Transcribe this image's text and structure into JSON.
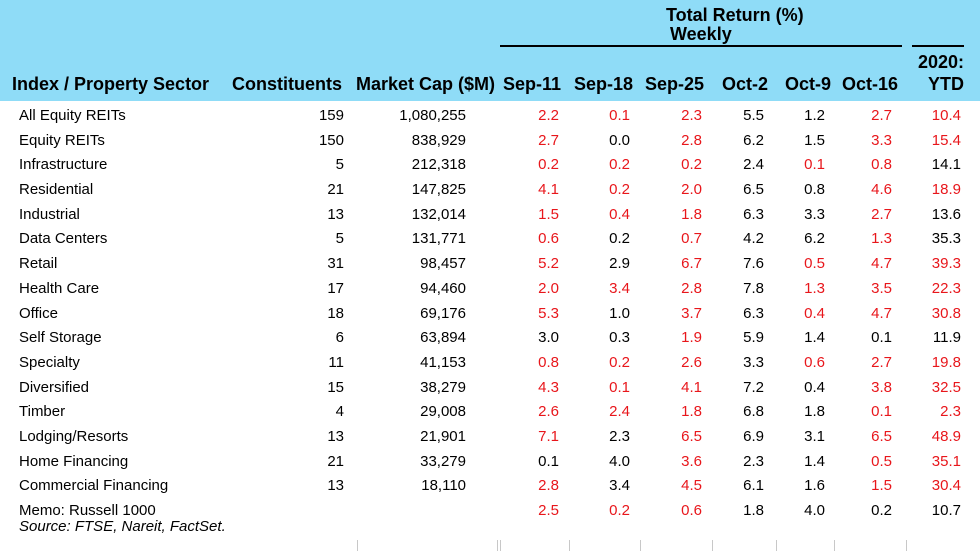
{
  "header": {
    "group_title": "Total Return (%)",
    "group_sub": "Weekly",
    "ytd_top": "2020:",
    "columns": {
      "sector": "Index / Property Sector",
      "constituents": "Constituents",
      "market_cap": "Market Cap ($M)",
      "w1": "Sep-11",
      "w2": "Sep-18",
      "w3": "Sep-25",
      "w4": "Oct-2",
      "w5": "Oct-9",
      "w6": "Oct-16",
      "ytd": "YTD"
    }
  },
  "rows": [
    {
      "name": "All Equity REITs",
      "constituents": "159",
      "market_cap": "1,080,255",
      "w1": "2.2",
      "w2": "0.1",
      "w3": "2.3",
      "w4": "5.5",
      "w5": "1.2",
      "w6": "2.7",
      "ytd": "10.4"
    },
    {
      "name": "Equity REITs",
      "constituents": "150",
      "market_cap": "838,929",
      "w1": "2.7",
      "w2": "0.0",
      "w3": "2.8",
      "w4": "6.2",
      "w5": "1.5",
      "w6": "3.3",
      "ytd": "15.4"
    },
    {
      "name": "Infrastructure",
      "constituents": "5",
      "market_cap": "212,318",
      "w1": "0.2",
      "w2": "0.2",
      "w3": "0.2",
      "w4": "2.4",
      "w5": "0.1",
      "w6": "0.8",
      "ytd": "14.1"
    },
    {
      "name": "Residential",
      "constituents": "21",
      "market_cap": "147,825",
      "w1": "4.1",
      "w2": "0.2",
      "w3": "2.0",
      "w4": "6.5",
      "w5": "0.8",
      "w6": "4.6",
      "ytd": "18.9"
    },
    {
      "name": "Industrial",
      "constituents": "13",
      "market_cap": "132,014",
      "w1": "1.5",
      "w2": "0.4",
      "w3": "1.8",
      "w4": "6.3",
      "w5": "3.3",
      "w6": "2.7",
      "ytd": "13.6"
    },
    {
      "name": "Data Centers",
      "constituents": "5",
      "market_cap": "131,771",
      "w1": "0.6",
      "w2": "0.2",
      "w3": "0.7",
      "w4": "4.2",
      "w5": "6.2",
      "w6": "1.3",
      "ytd": "35.3"
    },
    {
      "name": "Retail",
      "constituents": "31",
      "market_cap": "98,457",
      "w1": "5.2",
      "w2": "2.9",
      "w3": "6.7",
      "w4": "7.6",
      "w5": "0.5",
      "w6": "4.7",
      "ytd": "39.3"
    },
    {
      "name": "Health Care",
      "constituents": "17",
      "market_cap": "94,460",
      "w1": "2.0",
      "w2": "3.4",
      "w3": "2.8",
      "w4": "7.8",
      "w5": "1.3",
      "w6": "3.5",
      "ytd": "22.3"
    },
    {
      "name": "Office",
      "constituents": "18",
      "market_cap": "69,176",
      "w1": "5.3",
      "w2": "1.0",
      "w3": "3.7",
      "w4": "6.3",
      "w5": "0.4",
      "w6": "4.7",
      "ytd": "30.8"
    },
    {
      "name": "Self Storage",
      "constituents": "6",
      "market_cap": "63,894",
      "w1": "3.0",
      "w2": "0.3",
      "w3": "1.9",
      "w4": "5.9",
      "w5": "1.4",
      "w6": "0.1",
      "ytd": "11.9"
    },
    {
      "name": "Specialty",
      "constituents": "11",
      "market_cap": "41,153",
      "w1": "0.8",
      "w2": "0.2",
      "w3": "2.6",
      "w4": "3.3",
      "w5": "0.6",
      "w6": "2.7",
      "ytd": "19.8"
    },
    {
      "name": "Diversified",
      "constituents": "15",
      "market_cap": "38,279",
      "w1": "4.3",
      "w2": "0.1",
      "w3": "4.1",
      "w4": "7.2",
      "w5": "0.4",
      "w6": "3.8",
      "ytd": "32.5"
    },
    {
      "name": "Timber",
      "constituents": "4",
      "market_cap": "29,008",
      "w1": "2.6",
      "w2": "2.4",
      "w3": "1.8",
      "w4": "6.8",
      "w5": "1.8",
      "w6": "0.1",
      "ytd": "2.3"
    },
    {
      "name": "Lodging/Resorts",
      "constituents": "13",
      "market_cap": "21,901",
      "w1": "7.1",
      "w2": "2.3",
      "w3": "6.5",
      "w4": "6.9",
      "w5": "3.1",
      "w6": "6.5",
      "ytd": "48.9"
    },
    {
      "name": "Home Financing",
      "constituents": "21",
      "market_cap": "33,279",
      "w1": "0.1",
      "w2": "4.0",
      "w3": "3.6",
      "w4": "2.3",
      "w5": "1.4",
      "w6": "0.5",
      "ytd": "35.1"
    },
    {
      "name": "Commercial Financing",
      "constituents": "13",
      "market_cap": "18,110",
      "w1": "2.8",
      "w2": "3.4",
      "w3": "4.5",
      "w4": "6.1",
      "w5": "1.6",
      "w6": "1.5",
      "ytd": "30.4"
    },
    {
      "name": "Memo: Russell 1000",
      "constituents": "",
      "market_cap": "",
      "w1": "2.5",
      "w2": "0.2",
      "w3": "0.6",
      "w4": "1.8",
      "w5": "4.0",
      "w6": "0.2",
      "ytd": "10.7"
    }
  ],
  "red_flags": [
    [
      1,
      1,
      1,
      0,
      0,
      1,
      1
    ],
    [
      1,
      0,
      1,
      0,
      0,
      1,
      1
    ],
    [
      1,
      1,
      1,
      0,
      1,
      1,
      0
    ],
    [
      1,
      1,
      1,
      0,
      0,
      1,
      1
    ],
    [
      1,
      1,
      1,
      0,
      0,
      1,
      0
    ],
    [
      1,
      0,
      1,
      0,
      0,
      1,
      0
    ],
    [
      1,
      0,
      1,
      0,
      1,
      1,
      1
    ],
    [
      1,
      1,
      1,
      0,
      1,
      1,
      1
    ],
    [
      1,
      0,
      1,
      0,
      1,
      1,
      1
    ],
    [
      0,
      0,
      1,
      0,
      0,
      0,
      0
    ],
    [
      1,
      1,
      1,
      0,
      1,
      1,
      1
    ],
    [
      1,
      1,
      1,
      0,
      0,
      1,
      1
    ],
    [
      1,
      1,
      1,
      0,
      0,
      1,
      1
    ],
    [
      1,
      0,
      1,
      0,
      0,
      1,
      1
    ],
    [
      0,
      0,
      1,
      0,
      0,
      1,
      1
    ],
    [
      1,
      0,
      1,
      0,
      0,
      1,
      1
    ],
    [
      1,
      1,
      1,
      0,
      0,
      0,
      0
    ]
  ],
  "colors": {
    "header_bg": "#8fdcf7",
    "negative_red": "#e8161b"
  },
  "source": "Source: FTSE, Nareit, FactSet."
}
